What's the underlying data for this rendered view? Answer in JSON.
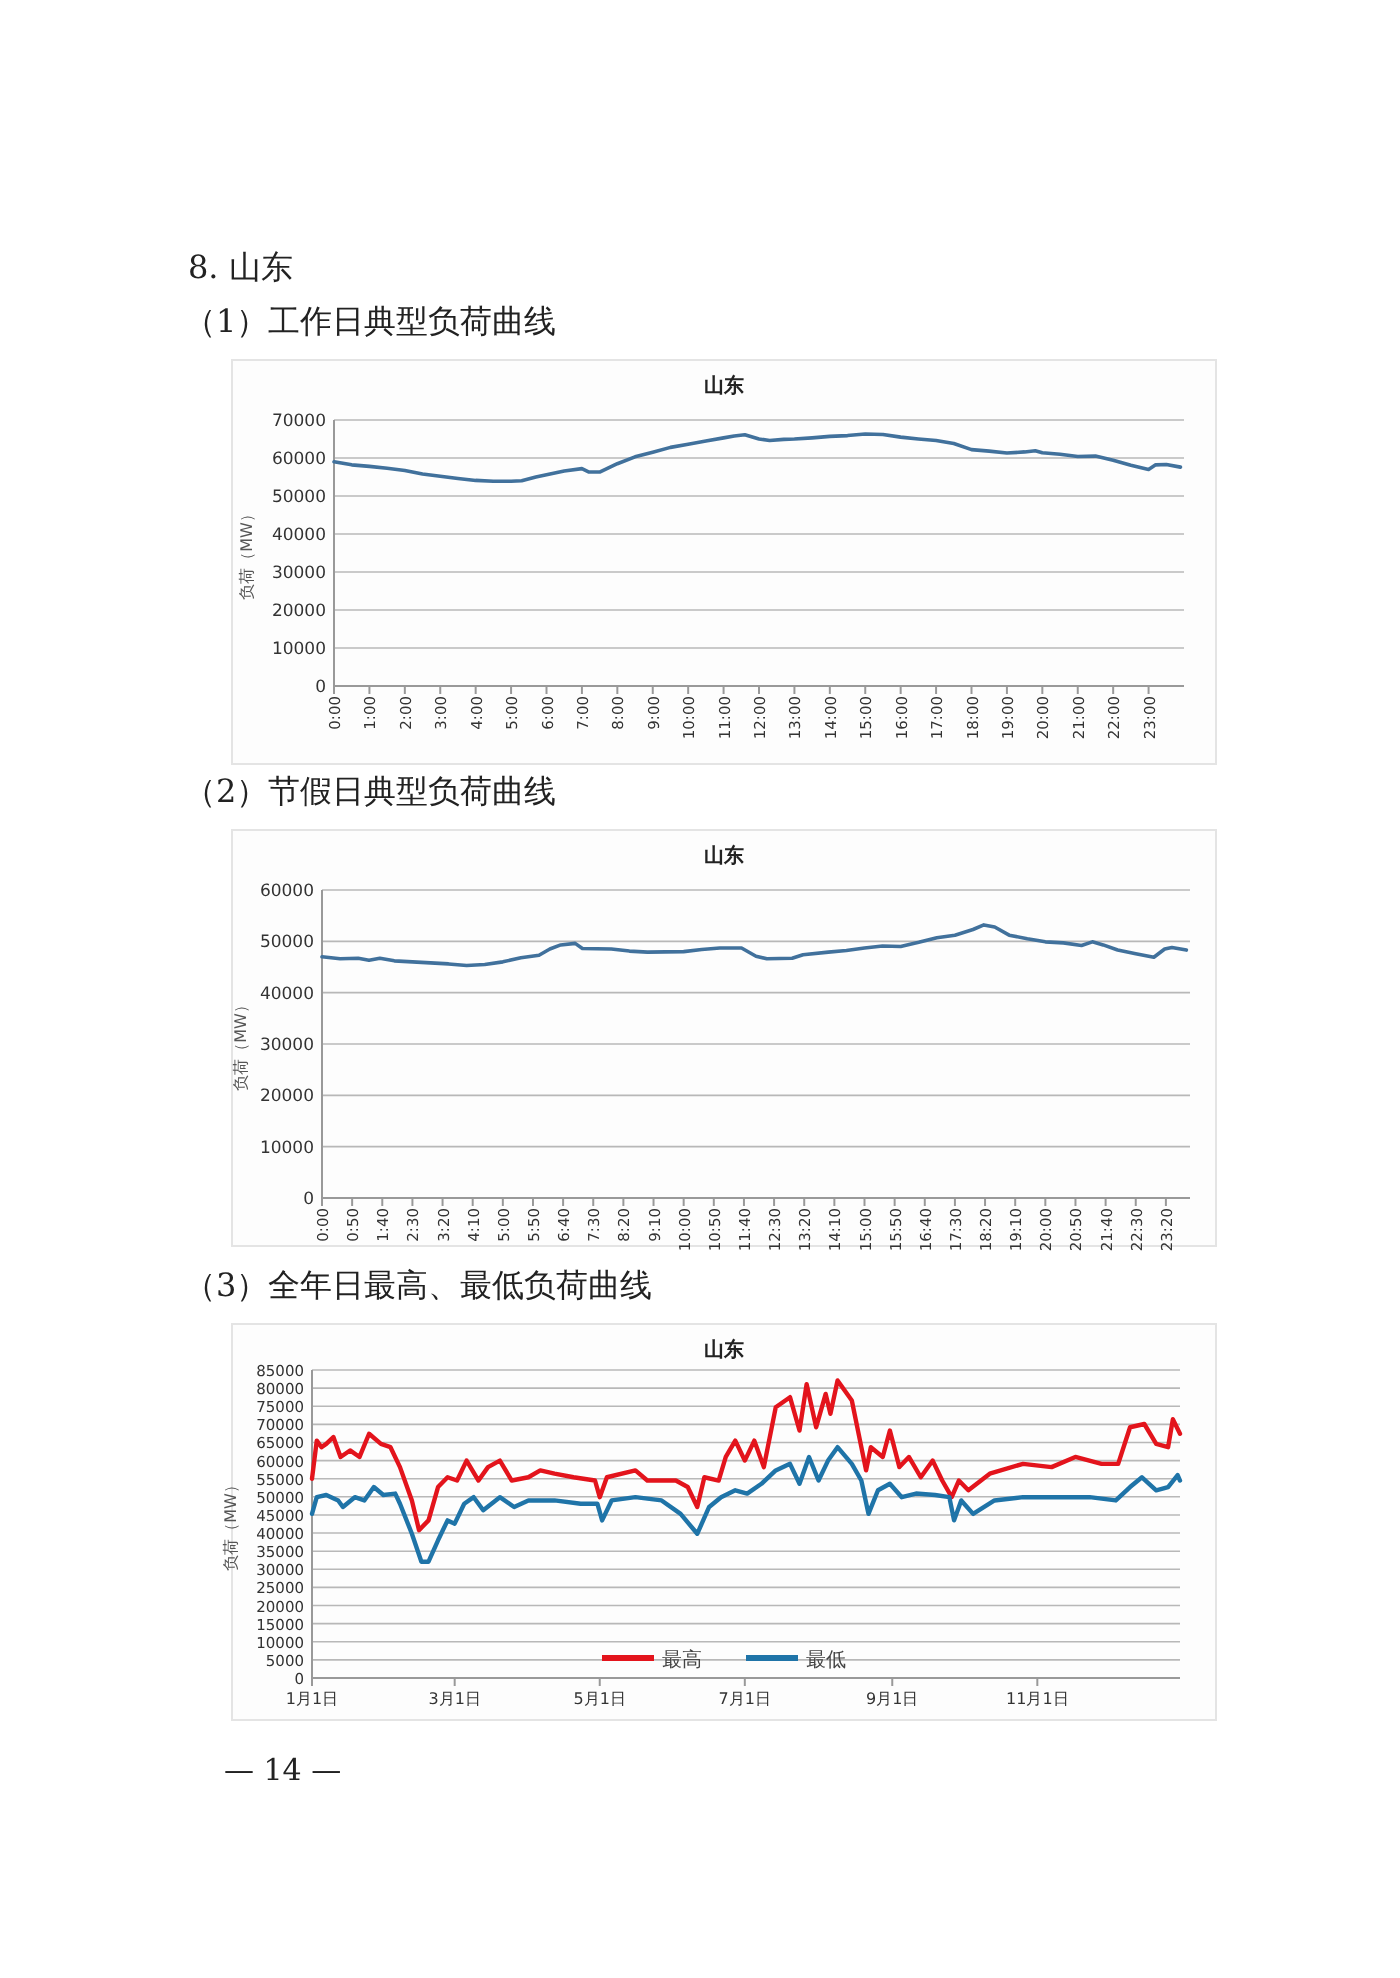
{
  "chart_data": [
    {
      "type": "line",
      "title": "山东",
      "ylabel": "负荷（MW）",
      "annotations": [
        "8. 山东",
        "（1）工作日典型负荷曲线"
      ],
      "grid": "y",
      "xlim": [
        0,
        24
      ],
      "ylim": [
        0,
        70000
      ],
      "yticks": [
        0,
        10000,
        20000,
        30000,
        40000,
        50000,
        60000,
        70000
      ],
      "xticks": [
        {
          "value": 0,
          "label": "0:00"
        },
        {
          "value": 1,
          "label": "1:00"
        },
        {
          "value": 2,
          "label": "2:00"
        },
        {
          "value": 3,
          "label": "3:00"
        },
        {
          "value": 4,
          "label": "4:00"
        },
        {
          "value": 5,
          "label": "5:00"
        },
        {
          "value": 6,
          "label": "6:00"
        },
        {
          "value": 7,
          "label": "7:00"
        },
        {
          "value": 8,
          "label": "8:00"
        },
        {
          "value": 9,
          "label": "9:00"
        },
        {
          "value": 10,
          "label": "10:00"
        },
        {
          "value": 11,
          "label": "11:00"
        },
        {
          "value": 12,
          "label": "12:00"
        },
        {
          "value": 13,
          "label": "13:00"
        },
        {
          "value": 14,
          "label": "14:00"
        },
        {
          "value": 15,
          "label": "15:00"
        },
        {
          "value": 16,
          "label": "16:00"
        },
        {
          "value": 17,
          "label": "17:00"
        },
        {
          "value": 18,
          "label": "18:00"
        },
        {
          "value": 19,
          "label": "19:00"
        },
        {
          "value": 20,
          "label": "20:00"
        },
        {
          "value": 21,
          "label": "21:00"
        },
        {
          "value": 22,
          "label": "22:00"
        },
        {
          "value": 23,
          "label": "23:00"
        }
      ],
      "x": [
        0,
        0.5,
        1,
        1.5,
        2,
        2.5,
        3,
        3.5,
        4,
        4.5,
        5,
        5.3,
        5.7,
        6,
        6.5,
        7,
        7.2,
        7.5,
        8,
        8.5,
        9,
        9.5,
        10,
        10.5,
        11,
        11.3,
        11.6,
        12,
        12.3,
        12.7,
        13,
        13.5,
        14,
        14.5,
        15,
        15.5,
        16,
        16.5,
        17,
        17.5,
        18,
        18.5,
        19,
        19.5,
        19.8,
        20,
        20.5,
        21,
        21.5,
        22,
        22.5,
        23,
        23.2,
        23.5,
        23.9
      ],
      "series": [
        {
          "color": "#41719c",
          "values": [
            59000,
            58200,
            57800,
            57300,
            56700,
            55800,
            55200,
            54600,
            54100,
            53900,
            53900,
            54000,
            55000,
            55600,
            56600,
            57200,
            56300,
            56300,
            58500,
            60300,
            61500,
            62800,
            63600,
            64500,
            65300,
            65800,
            66100,
            65000,
            64600,
            64900,
            65000,
            65300,
            65700,
            65900,
            66300,
            66200,
            65500,
            65000,
            64600,
            63800,
            62200,
            61800,
            61300,
            61600,
            61900,
            61400,
            61000,
            60400,
            60500,
            59400,
            58100,
            57000,
            58200,
            58300,
            57600
          ]
        }
      ]
    },
    {
      "type": "line",
      "title": "山东",
      "ylabel": "负荷（MW）",
      "annotations": [
        "（2）节假日典型负荷曲线"
      ],
      "grid": "y",
      "xlim": [
        0,
        24
      ],
      "ylim": [
        0,
        60000
      ],
      "yticks": [
        0,
        10000,
        20000,
        30000,
        40000,
        50000,
        60000
      ],
      "xticks": [
        {
          "value": 0,
          "label": "0:00"
        },
        {
          "value": 0.8333,
          "label": "0:50"
        },
        {
          "value": 1.6667,
          "label": "1:40"
        },
        {
          "value": 2.5,
          "label": "2:30"
        },
        {
          "value": 3.3333,
          "label": "3:20"
        },
        {
          "value": 4.1667,
          "label": "4:10"
        },
        {
          "value": 5,
          "label": "5:00"
        },
        {
          "value": 5.8333,
          "label": "5:50"
        },
        {
          "value": 6.6667,
          "label": "6:40"
        },
        {
          "value": 7.5,
          "label": "7:30"
        },
        {
          "value": 8.3333,
          "label": "8:20"
        },
        {
          "value": 9.1667,
          "label": "9:10"
        },
        {
          "value": 10,
          "label": "10:00"
        },
        {
          "value": 10.8333,
          "label": "10:50"
        },
        {
          "value": 11.6667,
          "label": "11:40"
        },
        {
          "value": 12.5,
          "label": "12:30"
        },
        {
          "value": 13.3333,
          "label": "13:20"
        },
        {
          "value": 14.1667,
          "label": "14:10"
        },
        {
          "value": 15,
          "label": "15:00"
        },
        {
          "value": 15.8333,
          "label": "15:50"
        },
        {
          "value": 16.6667,
          "label": "16:40"
        },
        {
          "value": 17.5,
          "label": "17:30"
        },
        {
          "value": 18.3333,
          "label": "18:20"
        },
        {
          "value": 19.1667,
          "label": "19:10"
        },
        {
          "value": 20,
          "label": "20:00"
        },
        {
          "value": 20.8333,
          "label": "20:50"
        },
        {
          "value": 21.6667,
          "label": "21:40"
        },
        {
          "value": 22.5,
          "label": "22:30"
        },
        {
          "value": 23.3333,
          "label": "23:20"
        }
      ],
      "x": [
        0,
        0.5,
        1,
        1.3,
        1.6,
        2,
        2.5,
        3,
        3.5,
        4,
        4.5,
        5,
        5.5,
        6,
        6.3,
        6.6,
        7,
        7.2,
        8,
        8.5,
        9,
        10,
        10.5,
        11,
        11.6,
        12,
        12.3,
        13,
        13.3,
        14,
        14.5,
        15,
        15.5,
        16,
        16.5,
        17,
        17.5,
        18,
        18.3,
        18.6,
        19,
        19.5,
        20,
        20.5,
        21,
        21.3,
        21.6,
        22,
        22.5,
        23,
        23.3,
        23.5,
        23.9
      ],
      "series": [
        {
          "color": "#41719c",
          "values": [
            47000,
            46600,
            46700,
            46300,
            46700,
            46200,
            46000,
            45800,
            45600,
            45300,
            45500,
            46000,
            46800,
            47300,
            48500,
            49300,
            49600,
            48600,
            48500,
            48100,
            47900,
            48000,
            48400,
            48700,
            48700,
            47100,
            46600,
            46700,
            47400,
            47900,
            48200,
            48700,
            49100,
            49000,
            49800,
            50700,
            51200,
            52300,
            53200,
            52800,
            51200,
            50500,
            49900,
            49700,
            49200,
            49900,
            49300,
            48300,
            47600,
            46900,
            48500,
            48800,
            48300
          ]
        }
      ]
    },
    {
      "type": "line",
      "title": "山东",
      "ylabel": "负荷（MW）",
      "annotations": [
        "（3）全年日最高、最低负荷曲线"
      ],
      "grid": "y",
      "legend": "bottom",
      "xlim": [
        "--01-01",
        "--12-31"
      ],
      "ylim": [
        0,
        85000
      ],
      "yticks": [
        0,
        5000,
        10000,
        15000,
        20000,
        25000,
        30000,
        35000,
        40000,
        45000,
        50000,
        55000,
        60000,
        65000,
        70000,
        75000,
        80000,
        85000
      ],
      "xticks": [
        {
          "value": "--01-01",
          "label": "1月1日"
        },
        {
          "value": "--03-01",
          "label": "3月1日"
        },
        {
          "value": "--05-01",
          "label": "5月1日"
        },
        {
          "value": "--07-01",
          "label": "7月1日"
        },
        {
          "value": "--09-01",
          "label": "9月1日"
        },
        {
          "value": "--11-01",
          "label": "11月1日"
        }
      ],
      "series": [
        {
          "name": "最高",
          "color": "#e3141c",
          "x": [
            "--01-01",
            "--01-03",
            "--01-05",
            "--01-07",
            "--01-10",
            "--01-13",
            "--01-17",
            "--01-21",
            "--01-25",
            "--01-30",
            "--02-03",
            "--02-07",
            "--02-12",
            "--02-15",
            "--02-19",
            "--02-23",
            "--02-27",
            "--03-02",
            "--03-06",
            "--03-11",
            "--03-15",
            "--03-20",
            "--03-25",
            "--04-01",
            "--04-06",
            "--04-12",
            "--04-20",
            "--04-29",
            "--05-01",
            "--05-04",
            "--05-16",
            "--05-21",
            "--06-02",
            "--06-07",
            "--06-11",
            "--06-14",
            "--06-20",
            "--06-23",
            "--06-27",
            "--07-01",
            "--07-05",
            "--07-09",
            "--07-14",
            "--07-20",
            "--07-24",
            "--07-27",
            "--07-31",
            "--08-04",
            "--08-06",
            "--08-09",
            "--08-15",
            "--08-19",
            "--08-21",
            "--08-23",
            "--08-28",
            "--08-31",
            "--09-04",
            "--09-08",
            "--09-13",
            "--09-18",
            "--09-22",
            "--09-26",
            "--09-29",
            "--10-03",
            "--10-12",
            "--10-26",
            "--11-07",
            "--11-17",
            "--11-28",
            "--12-05",
            "--12-10",
            "--12-16",
            "--12-21",
            "--12-26",
            "--12-28",
            "--12-31"
          ],
          "values": [
            55000,
            65500,
            63700,
            64600,
            66500,
            61000,
            62800,
            61000,
            67400,
            64600,
            63700,
            58200,
            49000,
            40800,
            43500,
            52700,
            55400,
            54500,
            60000,
            54500,
            58200,
            60000,
            54500,
            55400,
            57300,
            56400,
            55400,
            54500,
            49900,
            55400,
            57300,
            54500,
            54500,
            52700,
            47200,
            55400,
            54500,
            61000,
            65500,
            60000,
            65500,
            58200,
            74700,
            77500,
            68300,
            81100,
            69200,
            78400,
            72900,
            82100,
            76600,
            63700,
            57300,
            63700,
            61000,
            68300,
            58200,
            61000,
            55400,
            60000,
            54500,
            49900,
            54500,
            51800,
            56400,
            59100,
            58200,
            61000,
            59100,
            59100,
            69200,
            70100,
            64600,
            63700,
            71400,
            67400
          ]
        },
        {
          "name": "最低",
          "color": "#1f74a8",
          "x": [
            "--01-01",
            "--01-03",
            "--01-07",
            "--01-12",
            "--01-14",
            "--01-19",
            "--01-23",
            "--01-27",
            "--01-31",
            "--02-05",
            "--02-07",
            "--02-12",
            "--02-16",
            "--02-19",
            "--02-23",
            "--02-27",
            "--03-01",
            "--03-05",
            "--03-09",
            "--03-13",
            "--03-20",
            "--03-26",
            "--04-01",
            "--04-12",
            "--04-23",
            "--04-30",
            "--05-02",
            "--05-06",
            "--05-16",
            "--05-27",
            "--06-04",
            "--06-11",
            "--06-16",
            "--06-21",
            "--06-27",
            "--07-02",
            "--07-08",
            "--07-14",
            "--07-20",
            "--07-24",
            "--07-28",
            "--08-01",
            "--08-05",
            "--08-09",
            "--08-15",
            "--08-19",
            "--08-22",
            "--08-26",
            "--08-31",
            "--09-05",
            "--09-11",
            "--09-19",
            "--09-25",
            "--09-27",
            "--09-30",
            "--10-05",
            "--10-14",
            "--10-26",
            "--11-09",
            "--11-23",
            "--12-04",
            "--12-10",
            "--12-15",
            "--12-21",
            "--12-26",
            "--12-30",
            "--12-31"
          ],
          "values": [
            45300,
            49900,
            50500,
            49000,
            47200,
            49900,
            49000,
            52700,
            50500,
            50900,
            48100,
            39800,
            32100,
            32100,
            38000,
            43500,
            42600,
            48100,
            49900,
            46300,
            49900,
            47200,
            49000,
            49000,
            48100,
            48100,
            43500,
            49000,
            49900,
            49000,
            45300,
            39800,
            47200,
            49900,
            51800,
            50900,
            53600,
            57300,
            59100,
            53600,
            61000,
            54500,
            60000,
            63700,
            59100,
            54500,
            45300,
            51800,
            53600,
            49900,
            50900,
            50500,
            49900,
            43500,
            49000,
            45300,
            49000,
            49900,
            49900,
            49900,
            49000,
            52700,
            55400,
            51800,
            52700,
            56000,
            54500
          ]
        }
      ]
    },
    {
      "type": "other",
      "annotations": [
        "— 14 —"
      ]
    }
  ]
}
